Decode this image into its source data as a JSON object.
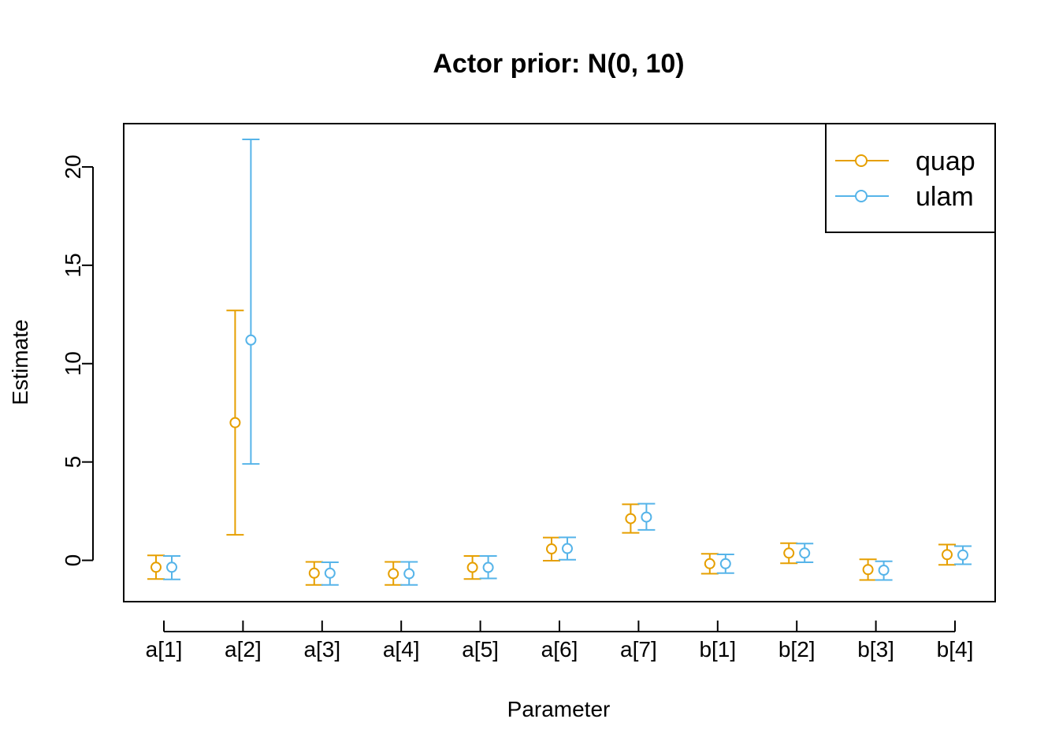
{
  "chart_data": {
    "type": "scatter",
    "title": "Actor prior: N(0, 10)",
    "xlabel": "Parameter",
    "ylabel": "Estimate",
    "categories": [
      "a[1]",
      "a[2]",
      "a[3]",
      "a[4]",
      "a[5]",
      "a[6]",
      "a[7]",
      "b[1]",
      "b[2]",
      "b[3]",
      "b[4]"
    ],
    "yticks": [
      0,
      5,
      10,
      15,
      20
    ],
    "ylim": [
      -2.1,
      22.2
    ],
    "grid": false,
    "legend_position": "top-right",
    "series": [
      {
        "name": "quap",
        "color": "#E69F00",
        "estimate": [
          -0.35,
          7.0,
          -0.65,
          -0.68,
          -0.36,
          0.58,
          2.12,
          -0.17,
          0.37,
          -0.47,
          0.29
        ],
        "lower": [
          -0.95,
          1.3,
          -1.25,
          -1.25,
          -0.95,
          -0.02,
          1.4,
          -0.68,
          -0.15,
          -1.0,
          -0.23
        ],
        "upper": [
          0.25,
          12.7,
          -0.08,
          -0.08,
          0.22,
          1.16,
          2.85,
          0.33,
          0.87,
          0.05,
          0.8
        ]
      },
      {
        "name": "ulam",
        "color": "#56B4E9",
        "estimate": [
          -0.35,
          11.2,
          -0.65,
          -0.68,
          -0.36,
          0.6,
          2.2,
          -0.17,
          0.37,
          -0.5,
          0.27
        ],
        "lower": [
          -0.97,
          4.9,
          -1.25,
          -1.25,
          -0.92,
          0.03,
          1.55,
          -0.65,
          -0.1,
          -1.0,
          -0.2
        ],
        "upper": [
          0.22,
          21.4,
          -0.1,
          -0.08,
          0.22,
          1.17,
          2.88,
          0.3,
          0.85,
          -0.05,
          0.72
        ]
      }
    ]
  }
}
